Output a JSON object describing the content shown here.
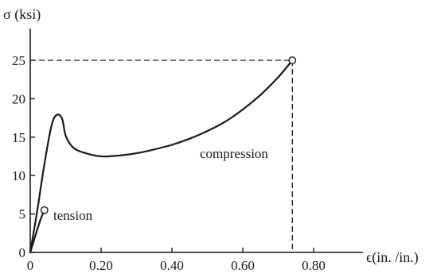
{
  "chart_data": {
    "type": "line",
    "title": "",
    "ylabel": "σ (ksi)",
    "xlabel": "ϵ(in. /in.)",
    "xlim": [
      0,
      0.85
    ],
    "ylim": [
      0,
      28
    ],
    "x_ticks": [
      0,
      0.2,
      0.4,
      0.6,
      0.8
    ],
    "x_tick_labels": [
      "0",
      "0.20",
      "0.40",
      "0.60",
      "0.80"
    ],
    "y_ticks": [
      0,
      5,
      10,
      15,
      20,
      25
    ],
    "y_tick_labels": [
      "0",
      "5",
      "10",
      "15",
      "20",
      "25"
    ],
    "grid": false,
    "series": [
      {
        "name": "compression",
        "x": [
          0.0,
          0.02,
          0.04,
          0.06,
          0.075,
          0.09,
          0.1,
          0.12,
          0.15,
          0.2,
          0.25,
          0.3,
          0.35,
          0.4,
          0.45,
          0.5,
          0.55,
          0.6,
          0.65,
          0.7,
          0.74
        ],
        "y": [
          0,
          5.5,
          11.5,
          16.5,
          17.9,
          17.4,
          15.2,
          13.7,
          13.0,
          12.5,
          12.6,
          12.9,
          13.4,
          14.0,
          14.8,
          15.8,
          17.0,
          18.6,
          20.5,
          22.8,
          25.0
        ]
      },
      {
        "name": "tension",
        "x": [
          0.0,
          0.01,
          0.02,
          0.03,
          0.04
        ],
        "y": [
          0,
          1.5,
          3.0,
          4.4,
          5.5
        ]
      }
    ],
    "markers": [
      {
        "label": "tension-end",
        "x": 0.04,
        "y": 5.5
      },
      {
        "label": "compression-end",
        "x": 0.74,
        "y": 25.0
      }
    ],
    "reference_lines": {
      "x": 0.74,
      "y": 25.0
    },
    "annotations": [
      "compression",
      "tension"
    ]
  }
}
